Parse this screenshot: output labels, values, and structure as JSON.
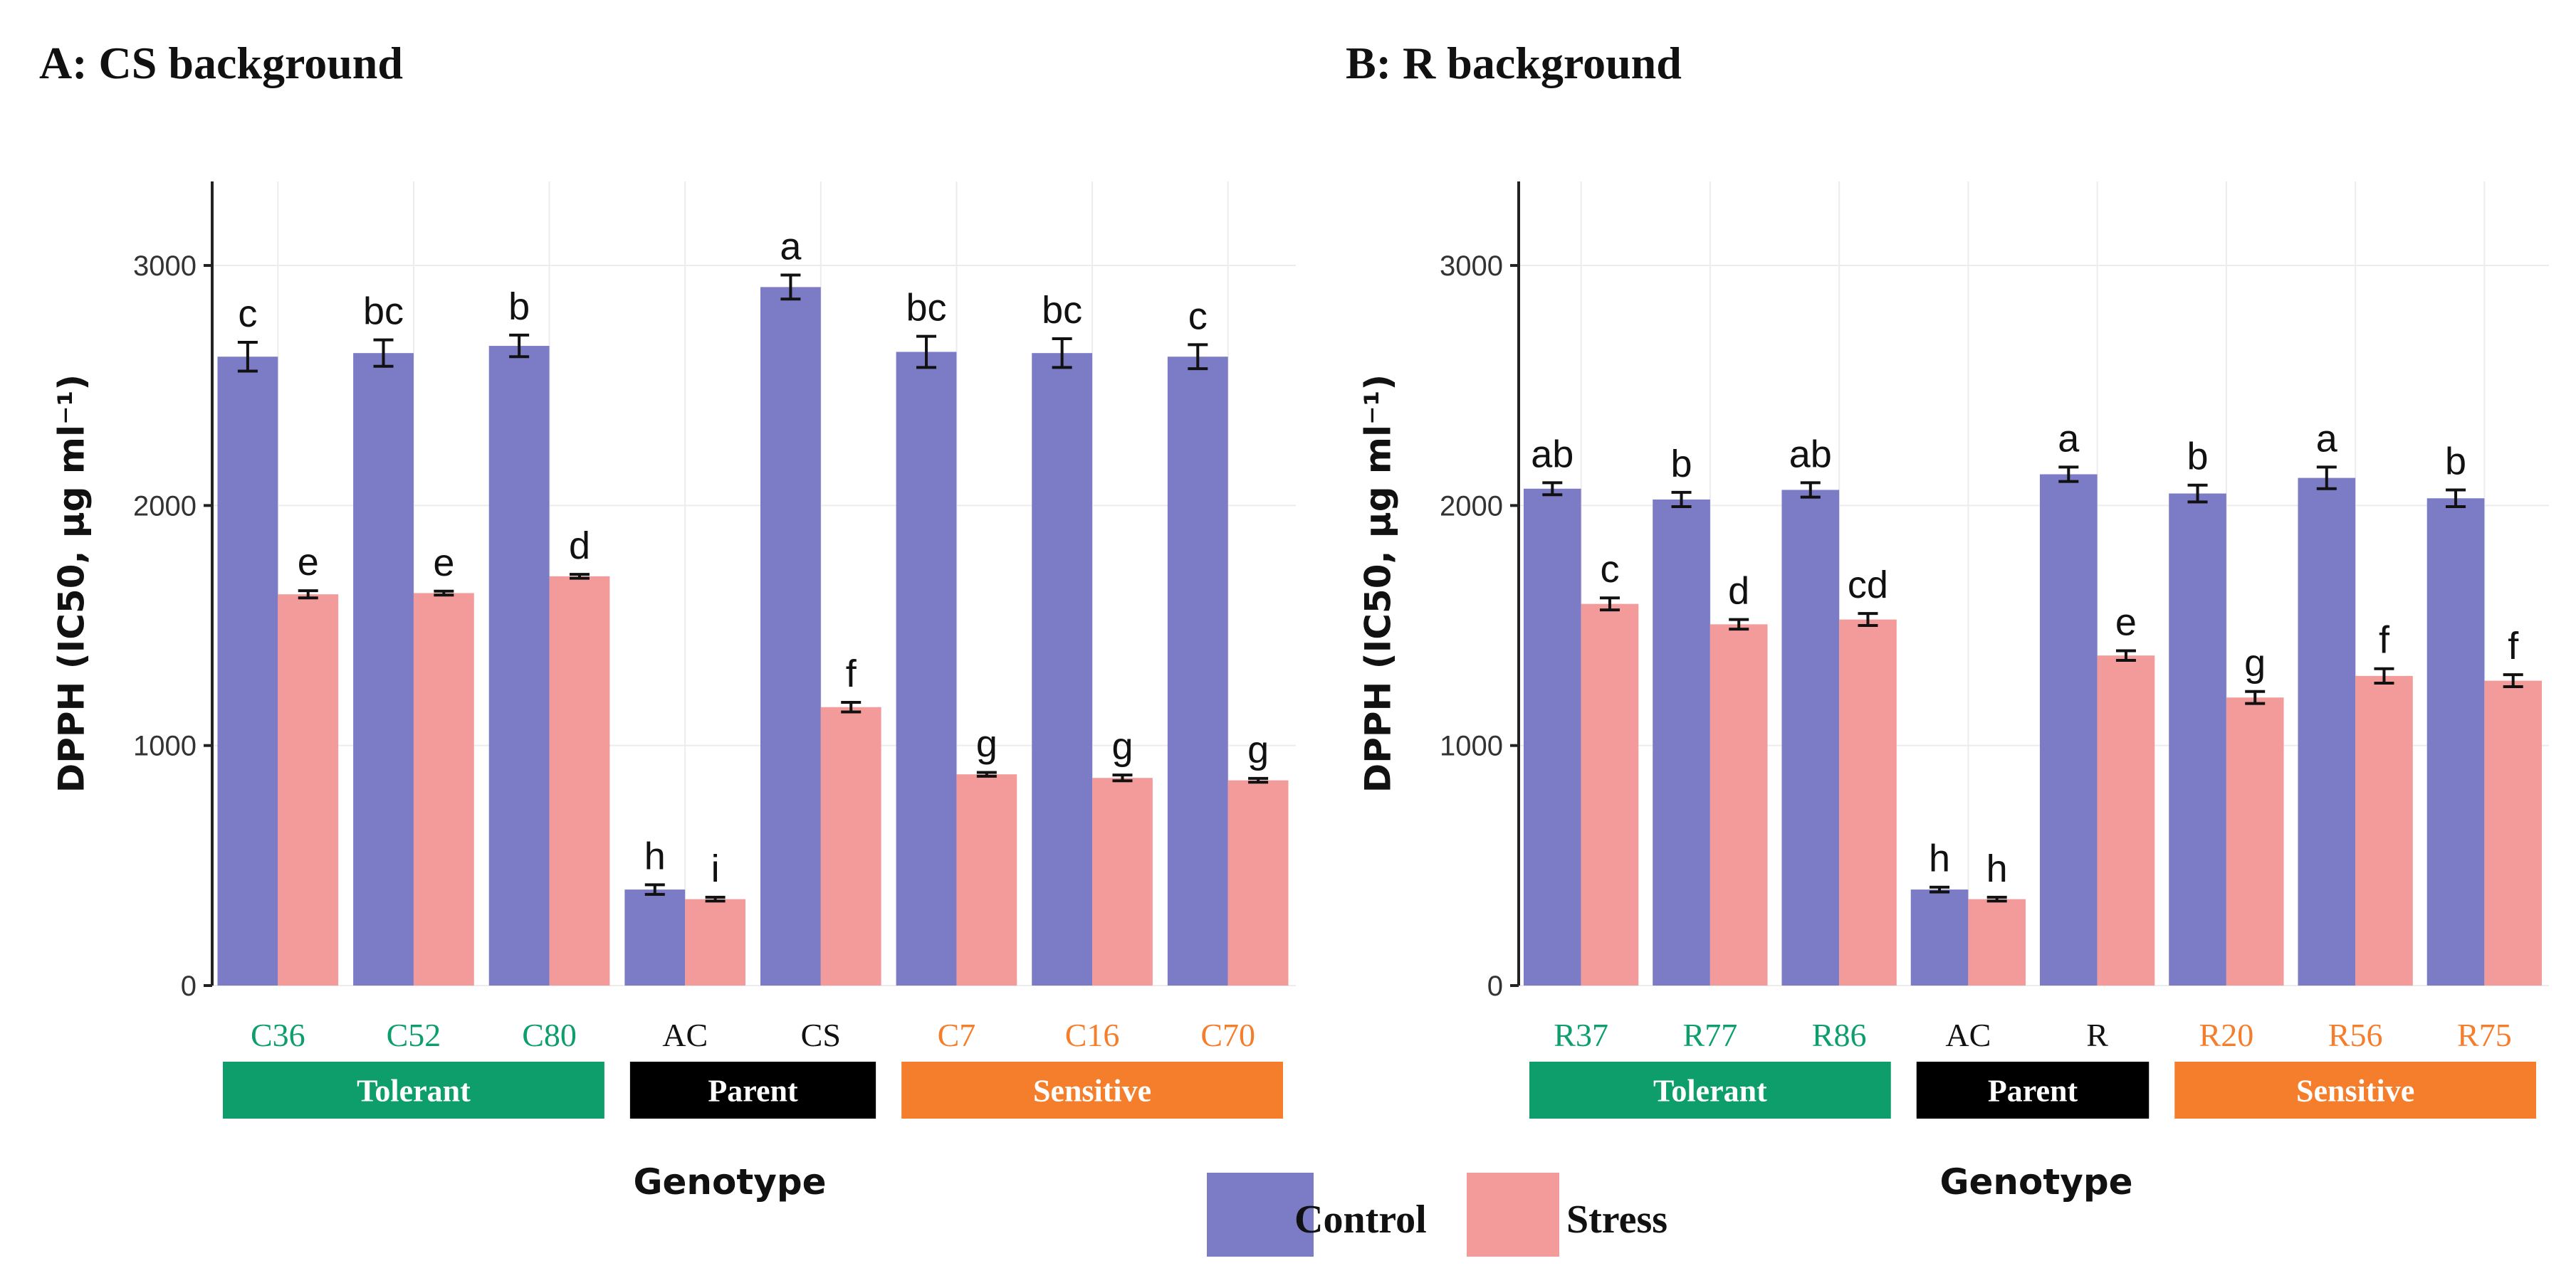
{
  "colors": {
    "control": "#7b7bc6",
    "stress": "#f39b9b",
    "tolerant": "#0d9e6c",
    "parent": "#000000",
    "sensitive": "#f47e2b"
  },
  "legend": {
    "control": "Control",
    "stress": "Stress"
  },
  "chart_data": [
    {
      "type": "bar",
      "title": "A: CS background",
      "ylabel": "DPPH (IC50, μg ml⁻¹)",
      "xlabel": "Genotype",
      "ylim": [
        0,
        3350
      ],
      "yticks": [
        0,
        1000,
        2000,
        3000
      ],
      "categories": [
        "C36",
        "C52",
        "C80",
        "AC",
        "CS",
        "C7",
        "C16",
        "C70"
      ],
      "category_groups": [
        "tolerant",
        "tolerant",
        "tolerant",
        "parent",
        "parent",
        "sensitive",
        "sensitive",
        "sensitive"
      ],
      "groups": [
        {
          "key": "tolerant",
          "label": "Tolerant",
          "span": [
            0,
            2
          ]
        },
        {
          "key": "parent",
          "label": "Parent",
          "span": [
            3,
            4
          ]
        },
        {
          "key": "sensitive",
          "label": "Sensitive",
          "span": [
            5,
            7
          ]
        }
      ],
      "series": [
        {
          "name": "Control",
          "values": [
            2620,
            2635,
            2665,
            400,
            2910,
            2640,
            2635,
            2620
          ],
          "errors": [
            60,
            55,
            45,
            20,
            50,
            65,
            60,
            50
          ],
          "letters": [
            "c",
            "bc",
            "b",
            "h",
            "a",
            "bc",
            "bc",
            "c"
          ]
        },
        {
          "name": "Stress",
          "values": [
            1630,
            1635,
            1705,
            360,
            1160,
            880,
            865,
            855
          ],
          "errors": [
            15,
            8,
            8,
            8,
            20,
            8,
            12,
            8
          ],
          "letters": [
            "e",
            "e",
            "d",
            "i",
            "f",
            "g",
            "g",
            "g"
          ]
        }
      ]
    },
    {
      "type": "bar",
      "title": "B: R background",
      "ylabel": "DPPH (IC50, μg ml⁻¹)",
      "xlabel": "Genotype",
      "ylim": [
        0,
        3350
      ],
      "yticks": [
        0,
        1000,
        2000,
        3000
      ],
      "categories": [
        "R37",
        "R77",
        "R86",
        "AC",
        "R",
        "R20",
        "R56",
        "R75"
      ],
      "category_groups": [
        "tolerant",
        "tolerant",
        "tolerant",
        "parent",
        "parent",
        "sensitive",
        "sensitive",
        "sensitive"
      ],
      "groups": [
        {
          "key": "tolerant",
          "label": "Tolerant",
          "span": [
            0,
            2
          ]
        },
        {
          "key": "parent",
          "label": "Parent",
          "span": [
            3,
            4
          ]
        },
        {
          "key": "sensitive",
          "label": "Sensitive",
          "span": [
            5,
            7
          ]
        }
      ],
      "series": [
        {
          "name": "Control",
          "values": [
            2070,
            2025,
            2065,
            400,
            2130,
            2050,
            2115,
            2030
          ],
          "errors": [
            25,
            30,
            30,
            10,
            30,
            35,
            45,
            35
          ],
          "letters": [
            "ab",
            "b",
            "ab",
            "h",
            "a",
            "b",
            "a",
            "b"
          ]
        },
        {
          "name": "Stress",
          "values": [
            1590,
            1505,
            1525,
            360,
            1375,
            1200,
            1290,
            1270
          ],
          "errors": [
            25,
            20,
            25,
            8,
            20,
            25,
            30,
            25
          ],
          "letters": [
            "c",
            "d",
            "cd",
            "h",
            "e",
            "g",
            "f",
            "f"
          ]
        }
      ]
    }
  ]
}
